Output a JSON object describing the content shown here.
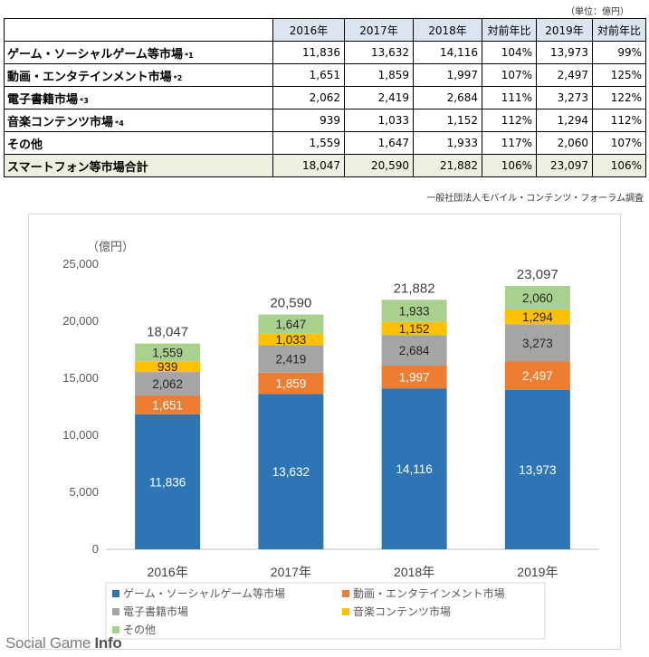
{
  "unit_note": "（単位：億円）",
  "table": {
    "headers": [
      "2016年",
      "2017年",
      "2018年",
      "対前年比",
      "2019年",
      "対前年比"
    ],
    "rows": [
      {
        "label": "ゲーム・ソーシャルゲーム等市場",
        "note": "*1",
        "cells": [
          "11,836",
          "13,632",
          "14,116",
          "104%",
          "13,973",
          "99%"
        ]
      },
      {
        "label": "動画・エンタテインメント市場",
        "note": "*2",
        "cells": [
          "1,651",
          "1,859",
          "1,997",
          "107%",
          "2,497",
          "125%"
        ]
      },
      {
        "label": "電子書籍市場",
        "note": "*3",
        "cells": [
          "2,062",
          "2,419",
          "2,684",
          "111%",
          "3,273",
          "122%"
        ]
      },
      {
        "label": "音楽コンテンツ市場",
        "note": "*4",
        "cells": [
          "939",
          "1,033",
          "1,152",
          "112%",
          "1,294",
          "112%"
        ]
      },
      {
        "label": "その他",
        "note": "",
        "cells": [
          "1,559",
          "1,647",
          "1,933",
          "117%",
          "2,060",
          "107%"
        ]
      }
    ],
    "total": {
      "label": "スマートフォン等市場合計",
      "cells": [
        "18,047",
        "20,590",
        "21,882",
        "106%",
        "23,097",
        "106%"
      ]
    }
  },
  "source": "一般社団法人モバイル・コンテンツ・フォーラム調査",
  "chart_data": {
    "type": "bar",
    "stacked": true,
    "ylabel": "（億円）",
    "ylim": [
      0,
      25000
    ],
    "yticks": [
      0,
      5000,
      10000,
      15000,
      20000,
      25000
    ],
    "ytick_labels": [
      "0",
      "5,000",
      "10,000",
      "15,000",
      "20,000",
      "25,000"
    ],
    "grid": false,
    "legend_position": "bottom",
    "categories": [
      "2016年",
      "2017年",
      "2018年",
      "2019年"
    ],
    "series": [
      {
        "name": "ゲーム・ソーシャルゲーム等市場",
        "color": "#2e75b6",
        "values": [
          11836,
          13632,
          14116,
          13973
        ],
        "labels": [
          "11,836",
          "13,632",
          "14,116",
          "13,973"
        ]
      },
      {
        "name": "動画・エンタテインメント市場",
        "color": "#ed7d31",
        "values": [
          1651,
          1859,
          1997,
          2497
        ],
        "labels": [
          "1,651",
          "1,859",
          "1,997",
          "2,497"
        ]
      },
      {
        "name": "電子書籍市場",
        "color": "#a5a5a5",
        "values": [
          2062,
          2419,
          2684,
          3273
        ],
        "labels": [
          "2,062",
          "2,419",
          "2,684",
          "3,273"
        ]
      },
      {
        "name": "音楽コンテンツ市場",
        "color": "#ffc000",
        "values": [
          939,
          1033,
          1152,
          1294
        ],
        "labels": [
          "939",
          "1,033",
          "1,152",
          "1,294"
        ]
      },
      {
        "name": "その他",
        "color": "#a9d18e",
        "values": [
          1559,
          1647,
          1933,
          2060
        ],
        "labels": [
          "1,559",
          "1,647",
          "1,933",
          "2,060"
        ]
      }
    ],
    "totals": [
      18047,
      20590,
      21882,
      23097
    ],
    "total_labels": [
      "18,047",
      "20,590",
      "21,882",
      "23,097"
    ]
  },
  "watermark": {
    "text": "Social Game ",
    "bold": "Info"
  }
}
